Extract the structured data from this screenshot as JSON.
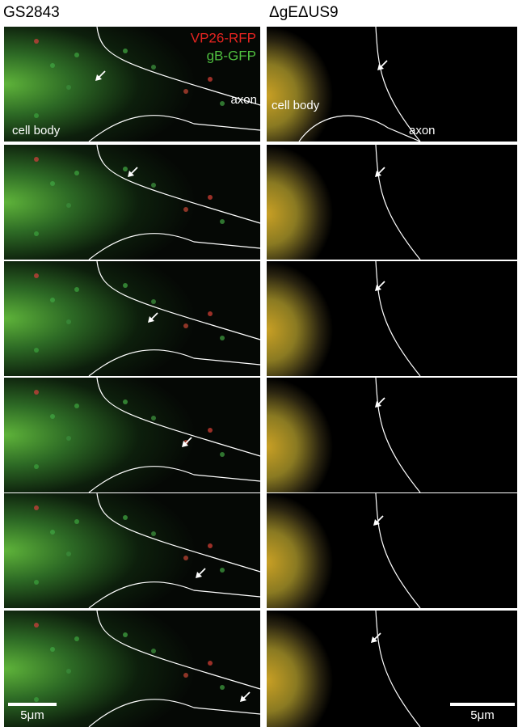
{
  "columns": [
    {
      "title": "GS2843"
    },
    {
      "title": "ΔgEΔUS9"
    }
  ],
  "legend": [
    "VP26-RFP",
    "gB-GFP"
  ],
  "annotations": {
    "left": [
      "axon",
      "cell body"
    ],
    "right": [
      "cell body",
      "axon"
    ]
  },
  "scale_bars": [
    "5μm",
    "5μm"
  ]
}
